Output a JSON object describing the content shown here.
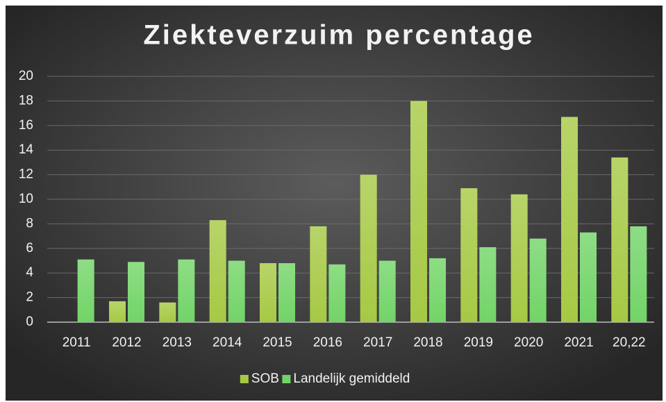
{
  "chart_data": {
    "type": "bar",
    "title": "Ziekteverzuim percentage",
    "categories": [
      "2011",
      "2012",
      "2013",
      "2014",
      "2015",
      "2016",
      "2017",
      "2018",
      "2019",
      "2020",
      "2021",
      "20,22"
    ],
    "series": [
      {
        "name": "SOB",
        "color": "#a6c944",
        "values": [
          null,
          1.7,
          1.6,
          8.3,
          4.8,
          7.8,
          12,
          18,
          10.9,
          10.4,
          16.7,
          13.4
        ]
      },
      {
        "name": "Landelijk gemiddeld",
        "color": "#72d467",
        "values": [
          5.1,
          4.9,
          5.1,
          5.0,
          4.8,
          4.7,
          5.0,
          5.2,
          6.1,
          6.8,
          7.3,
          7.8
        ]
      }
    ],
    "ylim": [
      0,
      20
    ],
    "yticks": [
      0,
      2,
      4,
      6,
      8,
      10,
      12,
      14,
      16,
      18,
      20
    ],
    "grid": true,
    "legend": "bottom"
  }
}
